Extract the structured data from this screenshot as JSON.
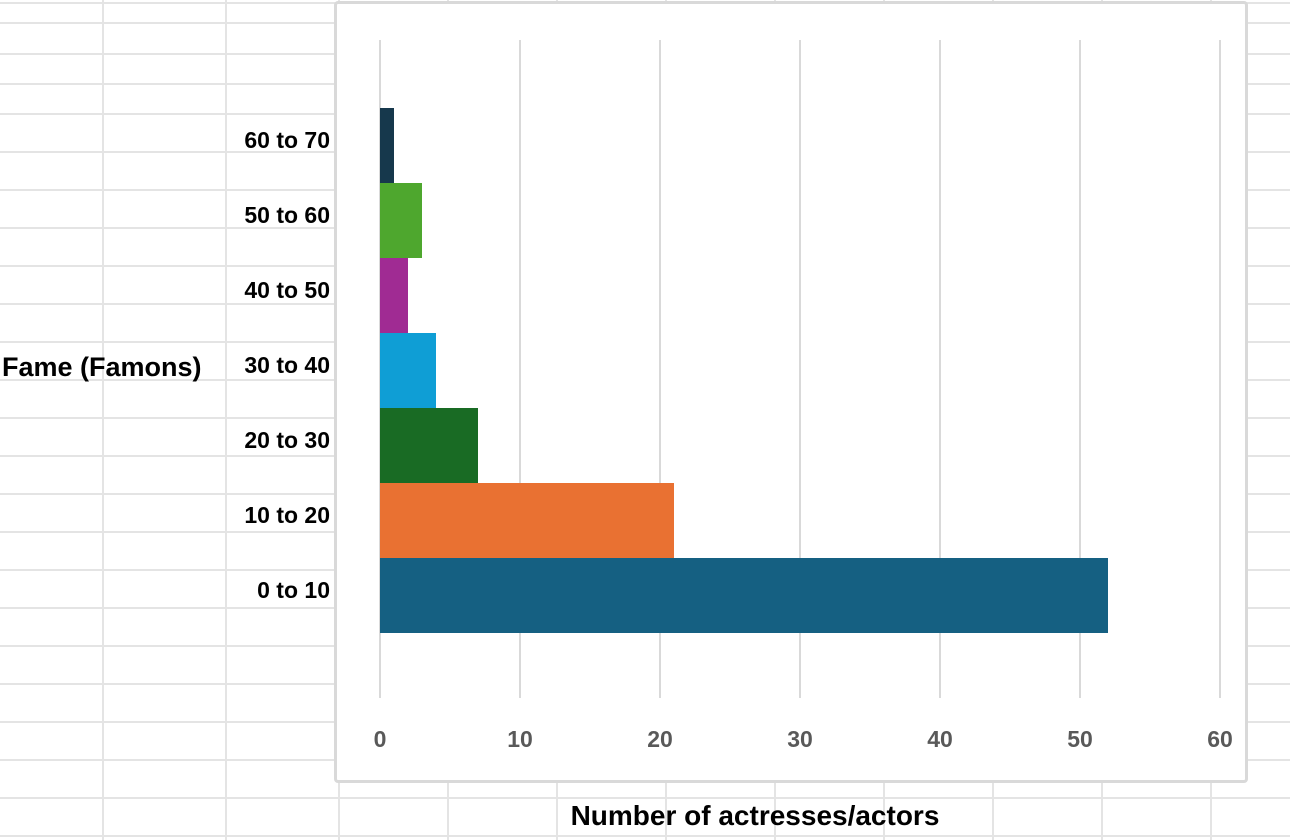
{
  "chart_data": {
    "type": "bar",
    "orientation": "horizontal",
    "title": "",
    "categories": [
      "60 to 70",
      "50 to 60",
      "40 to 50",
      "30 to 40",
      "20 to 30",
      "10 to 20",
      "0 to 10"
    ],
    "values": [
      1,
      3,
      2,
      4,
      7,
      21,
      52
    ],
    "bar_colors": [
      "#16384C",
      "#4EA72E",
      "#A02B93",
      "#0F9ED5",
      "#196B24",
      "#E97132",
      "#156082"
    ],
    "xlabel": "Number of actresses/actors",
    "ylabel": "Fame (Famons)",
    "x_ticks": [
      "0",
      "10",
      "20",
      "30",
      "40",
      "50",
      "60"
    ],
    "xlim": [
      0,
      60
    ],
    "grid": "vertical-only",
    "legend": "none",
    "gap_between_bars": 0
  },
  "colors": {
    "tick_label": "#595959",
    "chart_border": "#D9D9D9",
    "chart_gridline": "#D9D9D9",
    "sheet_gridline": "#E4E4E4",
    "bar_accent": "#156082",
    "text": "#000000",
    "chart_bg": "#FFFFFF"
  }
}
